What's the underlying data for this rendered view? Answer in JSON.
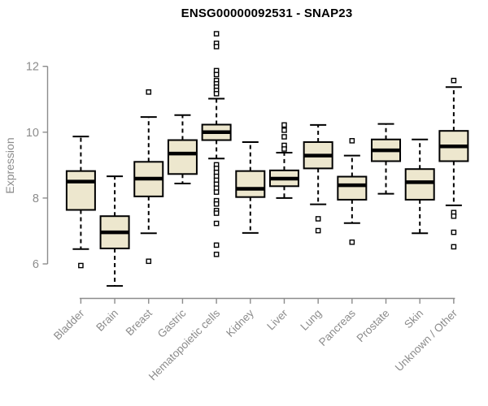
{
  "chart_data": {
    "type": "boxplot",
    "title": "ENSG00000092531 - SNAP23",
    "ylabel": "Expression",
    "xlabel": "",
    "yticks": [
      6,
      8,
      10,
      12
    ],
    "ylim": [
      5.1,
      13.1
    ],
    "grid": false,
    "legend": "none",
    "categories": [
      "Bladder",
      "Brain",
      "Breast",
      "Gastric",
      "Hematopoietic cells",
      "Kidney",
      "Liver",
      "Lung",
      "Pancreas",
      "Prostate",
      "Skin",
      "Unknown / Other"
    ],
    "series": [
      {
        "name": "Bladder",
        "whisker_low": 6.45,
        "q1": 7.64,
        "median": 8.5,
        "q3": 8.82,
        "whisker_high": 9.87,
        "outliers": [
          5.95
        ]
      },
      {
        "name": "Brain",
        "whisker_low": 5.33,
        "q1": 6.47,
        "median": 6.96,
        "q3": 7.45,
        "whisker_high": 8.66,
        "outliers": []
      },
      {
        "name": "Breast",
        "whisker_low": 6.93,
        "q1": 8.05,
        "median": 8.59,
        "q3": 9.1,
        "whisker_high": 10.46,
        "outliers": [
          11.22,
          6.08
        ]
      },
      {
        "name": "Gastric",
        "whisker_low": 8.44,
        "q1": 8.73,
        "median": 9.35,
        "q3": 9.76,
        "whisker_high": 10.52,
        "outliers": []
      },
      {
        "name": "Hematopoietic cells",
        "whisker_low": 9.2,
        "q1": 9.76,
        "median": 10.0,
        "q3": 10.23,
        "whisker_high": 11.02,
        "outliers": [
          12.99,
          12.7,
          12.6,
          11.87,
          11.75,
          11.57,
          11.47,
          11.37,
          11.27,
          11.17,
          9.01,
          8.9,
          8.78,
          8.66,
          8.54,
          8.42,
          8.3,
          8.18,
          7.92,
          7.82,
          7.62,
          7.54,
          7.23,
          6.57,
          6.29
        ]
      },
      {
        "name": "Kidney",
        "whisker_low": 6.94,
        "q1": 8.03,
        "median": 8.28,
        "q3": 8.82,
        "whisker_high": 9.7,
        "outliers": []
      },
      {
        "name": "Liver",
        "whisker_low": 8.0,
        "q1": 8.36,
        "median": 8.59,
        "q3": 8.84,
        "whisker_high": 9.38,
        "outliers": [
          10.22,
          10.06,
          9.86,
          9.6,
          9.49
        ]
      },
      {
        "name": "Lung",
        "whisker_low": 7.81,
        "q1": 8.9,
        "median": 9.29,
        "q3": 9.7,
        "whisker_high": 10.22,
        "outliers": [
          7.37,
          7.01
        ]
      },
      {
        "name": "Pancreas",
        "whisker_low": 7.24,
        "q1": 7.95,
        "median": 8.39,
        "q3": 8.65,
        "whisker_high": 9.29,
        "outliers": [
          9.74,
          6.66
        ]
      },
      {
        "name": "Prostate",
        "whisker_low": 8.13,
        "q1": 9.12,
        "median": 9.45,
        "q3": 9.78,
        "whisker_high": 10.25,
        "outliers": []
      },
      {
        "name": "Skin",
        "whisker_low": 6.93,
        "q1": 7.95,
        "median": 8.48,
        "q3": 8.88,
        "whisker_high": 9.78,
        "outliers": []
      },
      {
        "name": "Unknown / Other",
        "whisker_low": 7.78,
        "q1": 9.12,
        "median": 9.57,
        "q3": 10.04,
        "whisker_high": 11.37,
        "outliers": [
          11.57,
          7.56,
          7.45,
          6.96,
          6.52
        ]
      }
    ],
    "colors": {
      "box_fill": "#EDE7CE",
      "box_border": "#000000",
      "median": "#000000",
      "whisker": "#000000",
      "outlier_stroke": "#000000",
      "outlier_fill": "#FFFFFF",
      "axis": "#8C8C8C",
      "tick_label": "#8C8C8C",
      "title": "#000000",
      "background": "#FFFFFF"
    }
  }
}
